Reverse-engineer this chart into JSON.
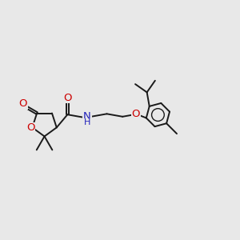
{
  "bg_color": "#e8e8e8",
  "bond_color": "#1a1a1a",
  "bond_width": 1.4,
  "font_size": 8.5,
  "O_color": "#cc0000",
  "N_color": "#2222bb",
  "xlim": [
    -1.0,
    12.5
  ],
  "ylim": [
    1.5,
    8.5
  ]
}
